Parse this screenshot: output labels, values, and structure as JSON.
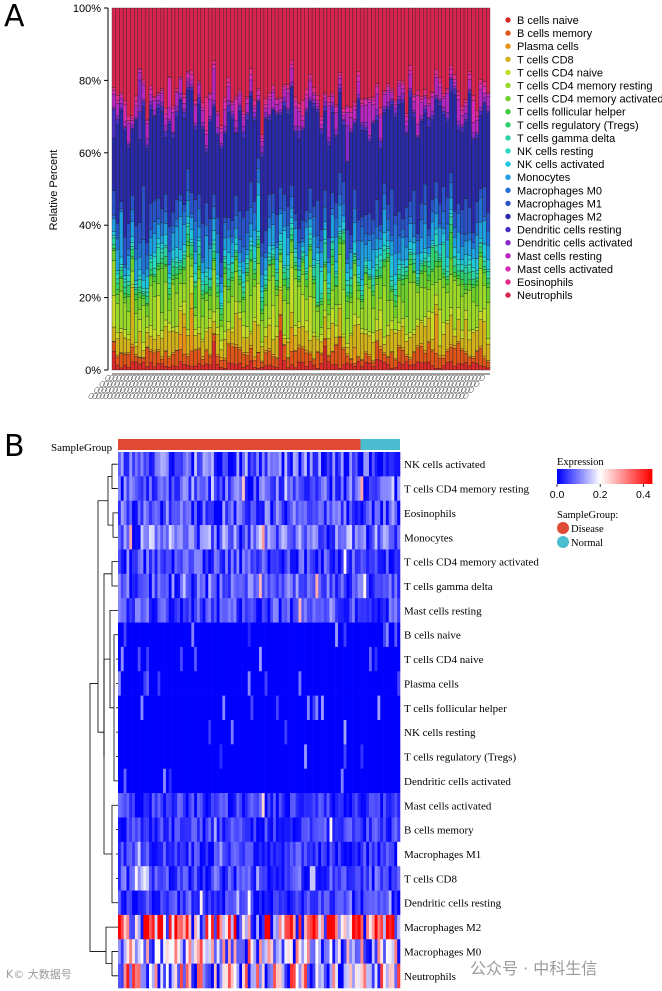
{
  "panels": {
    "a": "A",
    "b": "B"
  },
  "watermarks": {
    "left": "K© 大数据号",
    "right": "公众号 · 中科生信"
  },
  "colors": {
    "B cells naive": "#d7282a",
    "B cells memory": "#dd5518",
    "Plasma cells": "#e8921a",
    "T cells CD8": "#d2b21a",
    "T cells CD4 naive": "#c6dc2a",
    "T cells CD4 memory resting": "#9ad82a",
    "T cells CD4 memory activated": "#6ccf2c",
    "T cells follicular helper": "#3fcb3a",
    "T cells regulatory (Tregs)": "#2ecf6e",
    "T cells gamma delta": "#2ad3a2",
    "NK cells resting": "#2ad8c4",
    "NK cells activated": "#20c6dc",
    "Monocytes": "#1f9ee0",
    "Macrophages M0": "#2272d6",
    "Macrophages M1": "#2a52c8",
    "Macrophages M2": "#2a2aa8",
    "Dendritic cells resting": "#4a2fc4",
    "Dendritic cells activated": "#8a28c4",
    "Mast cells resting": "#b626c0",
    "Mast cells activated": "#d92ab4",
    "Eosinophils": "#e22a8a",
    "Neutrophils": "#d8254e",
    "Disease": "#e04a34",
    "Normal": "#4cbcd0"
  },
  "chart_data": [
    {
      "type": "bar",
      "subtype": "stacked-percent",
      "ylabel": "Relative Percent",
      "ylim": [
        0,
        100
      ],
      "yticks": [
        "0%",
        "20%",
        "40%",
        "60%",
        "80%",
        "100%"
      ],
      "n_samples": 102,
      "legend": [
        "B cells naive",
        "B cells memory",
        "Plasma cells",
        "T cells CD8",
        "T cells CD4 naive",
        "T cells CD4 memory resting",
        "T cells CD4 memory activated",
        "T cells follicular helper",
        "T cells regulatory (Tregs)",
        "T cells gamma delta",
        "NK cells resting",
        "NK cells activated",
        "Monocytes",
        "Macrophages M0",
        "Macrophages M1",
        "Macrophages M2",
        "Dendritic cells resting",
        "Dendritic cells activated",
        "Mast cells resting",
        "Mast cells activated",
        "Eosinophils",
        "Neutrophils"
      ],
      "series_mean_percent": [
        1.5,
        3,
        0.5,
        5,
        2,
        8,
        3,
        1,
        1.5,
        1.5,
        1,
        2,
        4,
        3,
        5,
        23,
        1,
        1,
        3,
        1,
        1,
        23
      ]
    },
    {
      "type": "heatmap",
      "annotation_title": "SampleGroup",
      "groups": [
        {
          "name": "Disease",
          "count": 86
        },
        {
          "name": "Normal",
          "count": 14
        }
      ],
      "rows": [
        "NK cells activated",
        "T cells CD4 memory resting",
        "Eosinophils",
        "Monocytes",
        "T cells CD4 memory activated",
        "T cells gamma delta",
        "Mast cells resting",
        "B cells naive",
        "T cells CD4 naive",
        "Plasma cells",
        "T cells follicular helper",
        "NK cells resting",
        "T cells regulatory (Tregs)",
        "Dendritic cells activated",
        "Mast cells activated",
        "B cells memory",
        "Macrophages M1",
        "T cells CD8",
        "Dendritic cells resting",
        "Macrophages M2",
        "Macrophages M0",
        "Neutrophils"
      ],
      "row_mean_expression": [
        0.07,
        0.06,
        0.06,
        0.08,
        0.05,
        0.06,
        0.05,
        0.005,
        0.01,
        0.002,
        0.005,
        0.005,
        0.005,
        0.005,
        0.04,
        0.04,
        0.04,
        0.05,
        0.04,
        0.26,
        0.15,
        0.18
      ],
      "legend_title": "Expression",
      "scale_ticks": [
        "0.0",
        "0.2",
        "0.4"
      ],
      "scale_range": [
        0,
        0.44
      ],
      "group_legend_title": "SampleGroup:"
    }
  ]
}
